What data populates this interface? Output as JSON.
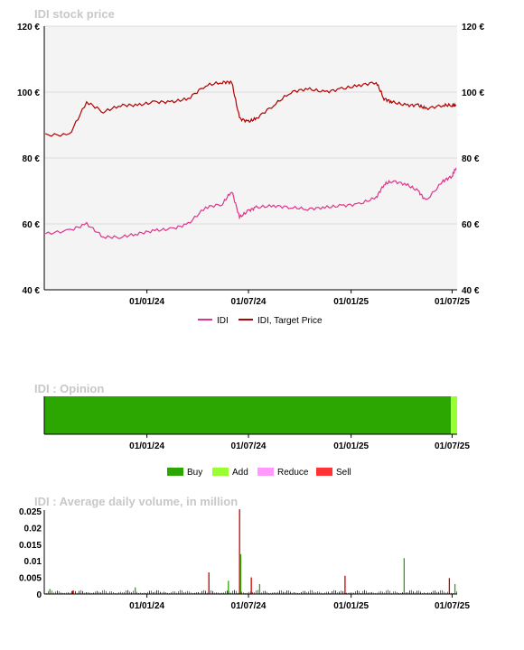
{
  "chart_data": [
    {
      "type": "line",
      "title": "IDI stock price",
      "x": [
        "2023-07-03",
        "2023-08-15",
        "2023-09-15",
        "2023-10-15",
        "2023-11-15",
        "2023-12-15",
        "2024-01-15",
        "2024-02-15",
        "2024-03-15",
        "2024-04-15",
        "2024-05-15",
        "2024-06-01",
        "2024-06-15",
        "2024-07-01",
        "2024-07-15",
        "2024-08-15",
        "2024-09-15",
        "2024-10-15",
        "2024-11-15",
        "2024-12-15",
        "2025-01-15",
        "2025-02-15",
        "2025-03-01",
        "2025-03-15",
        "2025-04-10",
        "2025-05-01",
        "2025-05-15",
        "2025-06-15",
        "2025-07-01",
        "2025-07-08"
      ],
      "series": [
        {
          "name": "IDI",
          "color": "#e0348a",
          "values": [
            57,
            58,
            60,
            56,
            56,
            57,
            58,
            58.5,
            60,
            65,
            66,
            70,
            62,
            64,
            65,
            65.5,
            65,
            64.5,
            65,
            65.5,
            66,
            68,
            72,
            73,
            72,
            70,
            67,
            73,
            74.5,
            77
          ]
        },
        {
          "name": "IDI, Target Price",
          "color": "#b30000",
          "values": [
            87,
            87,
            97,
            94,
            96,
            96,
            97,
            97,
            98,
            102,
            103,
            103,
            92,
            91,
            92,
            96,
            100,
            101,
            100,
            101,
            102,
            103,
            98,
            97,
            96,
            96,
            95,
            96,
            96,
            96
          ]
        }
      ],
      "yticks": [
        "40 €",
        "60 €",
        "80 €",
        "100 €",
        "120 €"
      ],
      "ylim": [
        40,
        120
      ],
      "xticks": [
        "01/01/24",
        "01/07/24",
        "01/01/25",
        "01/07/25"
      ],
      "legend_position": "bottom-center"
    },
    {
      "type": "bar",
      "title": "IDI : Opinion",
      "segments": [
        {
          "name": "Buy",
          "color": "#2ca600",
          "share": 0.985
        },
        {
          "name": "Add",
          "color": "#99ff33",
          "share": 0.015
        }
      ],
      "legend": [
        {
          "name": "Buy",
          "color": "#2ca600"
        },
        {
          "name": "Add",
          "color": "#99ff33"
        },
        {
          "name": "Reduce",
          "color": "#ff99ff"
        },
        {
          "name": "Sell",
          "color": "#ff3333"
        }
      ],
      "xticks": [
        "01/01/24",
        "01/07/24",
        "01/01/25",
        "01/07/25"
      ],
      "legend_position": "bottom-center"
    },
    {
      "type": "bar",
      "title": "IDI : Average daily volume, in million",
      "yticks": [
        "0",
        "0.005",
        "0.01",
        "0.015",
        "0.02",
        "0.025"
      ],
      "ylim": [
        0,
        0.025
      ],
      "xticks": [
        "01/01/24",
        "01/07/24",
        "01/01/25",
        "01/07/25"
      ],
      "spikes": [
        {
          "date": "2023-07-10",
          "value": 0.0015
        },
        {
          "date": "2023-08-20",
          "value": 0.001
        },
        {
          "date": "2023-12-10",
          "value": 0.002
        },
        {
          "date": "2024-04-20",
          "value": 0.0065
        },
        {
          "date": "2024-05-25",
          "value": 0.004
        },
        {
          "date": "2024-06-14",
          "value": 0.0255
        },
        {
          "date": "2024-06-16",
          "value": 0.012
        },
        {
          "date": "2024-07-05",
          "value": 0.005
        },
        {
          "date": "2024-07-20",
          "value": 0.003
        },
        {
          "date": "2024-12-20",
          "value": 0.0055
        },
        {
          "date": "2025-04-05",
          "value": 0.0108
        },
        {
          "date": "2025-06-25",
          "value": 0.0048
        },
        {
          "date": "2025-07-05",
          "value": 0.003
        }
      ]
    }
  ]
}
